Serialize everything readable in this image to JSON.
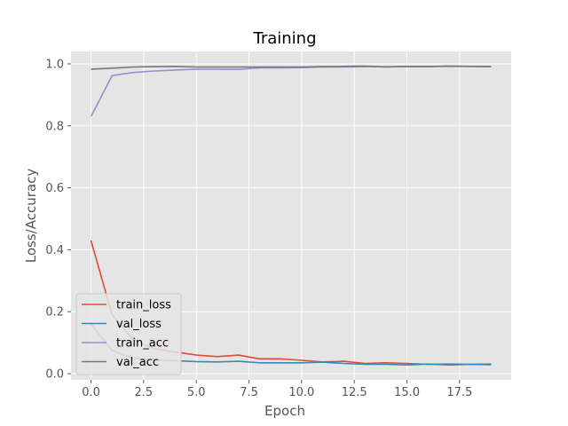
{
  "chart_data": {
    "type": "line",
    "title": "Training",
    "xlabel": "Epoch",
    "ylabel": "Loss/Accuracy",
    "xlim": [
      -0.95,
      19.95
    ],
    "ylim": [
      -0.02,
      1.04
    ],
    "xticks": [
      0,
      2.5,
      5,
      7.5,
      10,
      12.5,
      15,
      17.5
    ],
    "xtick_labels": [
      "0.0",
      "2.5",
      "5.0",
      "7.5",
      "10.0",
      "12.5",
      "15.0",
      "17.5"
    ],
    "yticks": [
      0,
      0.2,
      0.4,
      0.6,
      0.8,
      1.0
    ],
    "ytick_labels": [
      "0.0",
      "0.2",
      "0.4",
      "0.6",
      "0.8",
      "1.0"
    ],
    "grid": true,
    "legend_position": "lower-left",
    "x": [
      0,
      1,
      2,
      3,
      4,
      5,
      6,
      7,
      8,
      9,
      10,
      11,
      12,
      13,
      14,
      15,
      16,
      17,
      18,
      19
    ],
    "series": [
      {
        "name": "train_loss",
        "color": "#e24a33",
        "values": [
          0.43,
          0.19,
          0.11,
          0.08,
          0.07,
          0.06,
          0.055,
          0.06,
          0.048,
          0.048,
          0.043,
          0.038,
          0.04,
          0.033,
          0.035,
          0.033,
          0.03,
          0.031,
          0.03,
          0.029
        ]
      },
      {
        "name": "val_loss",
        "color": "#348abd",
        "values": [
          0.16,
          0.075,
          0.05,
          0.045,
          0.042,
          0.039,
          0.038,
          0.04,
          0.035,
          0.035,
          0.035,
          0.037,
          0.033,
          0.03,
          0.03,
          0.028,
          0.031,
          0.028,
          0.03,
          0.031
        ]
      },
      {
        "name": "train_acc",
        "color": "#988ed5",
        "values": [
          0.83,
          0.962,
          0.972,
          0.977,
          0.98,
          0.983,
          0.983,
          0.982,
          0.987,
          0.987,
          0.988,
          0.99,
          0.99,
          0.991,
          0.991,
          0.991,
          0.992,
          0.992,
          0.992,
          0.992
        ]
      },
      {
        "name": "val_acc",
        "color": "#777777",
        "values": [
          0.983,
          0.986,
          0.99,
          0.991,
          0.992,
          0.99,
          0.99,
          0.99,
          0.99,
          0.99,
          0.99,
          0.991,
          0.992,
          0.993,
          0.99,
          0.992,
          0.991,
          0.993,
          0.992,
          0.991
        ]
      }
    ]
  }
}
